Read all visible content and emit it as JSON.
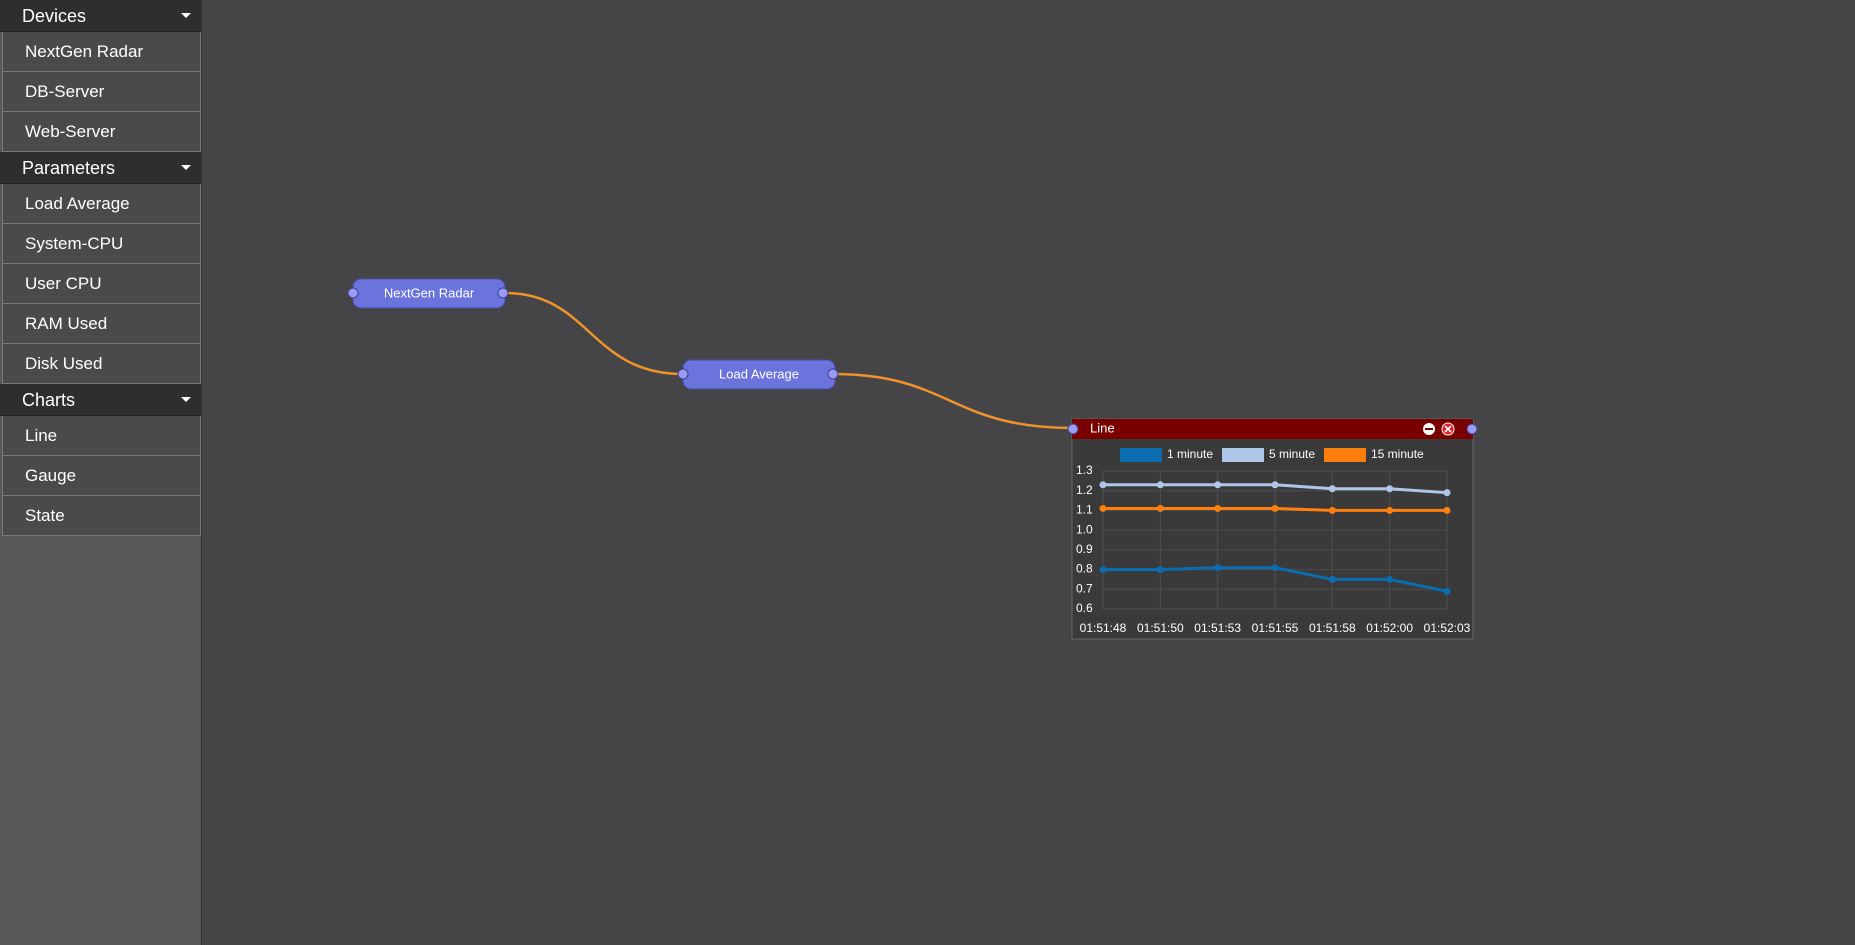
{
  "sidebar": {
    "sections": [
      {
        "title": "Devices",
        "items": [
          "NextGen Radar",
          "DB-Server",
          "Web-Server"
        ]
      },
      {
        "title": "Parameters",
        "items": [
          "Load Average",
          "System-CPU",
          "User CPU",
          "RAM Used",
          "Disk Used"
        ]
      },
      {
        "title": "Charts",
        "items": [
          "Line",
          "Gauge",
          "State"
        ]
      }
    ]
  },
  "nodes": [
    {
      "label": "NextGen Radar"
    },
    {
      "label": "Load Average"
    }
  ],
  "chart_data": {
    "type": "line",
    "title": "Line",
    "categories": [
      "01:51:48",
      "01:51:50",
      "01:51:53",
      "01:51:55",
      "01:51:58",
      "01:52:00",
      "01:52:03"
    ],
    "series": [
      {
        "name": "1 minute",
        "color": "#0a6db0",
        "values": [
          0.8,
          0.8,
          0.81,
          0.81,
          0.75,
          0.75,
          0.69
        ]
      },
      {
        "name": "5 minute",
        "color": "#aec7e8",
        "values": [
          1.23,
          1.23,
          1.23,
          1.23,
          1.21,
          1.21,
          1.19
        ]
      },
      {
        "name": "15 minute",
        "color": "#ff7f0e",
        "values": [
          1.11,
          1.11,
          1.11,
          1.11,
          1.1,
          1.1,
          1.1
        ]
      }
    ],
    "ylim": [
      0.6,
      1.3
    ],
    "yticks": [
      0.6,
      0.7,
      0.8,
      0.9,
      {
        "value": 1,
        "label": "1.0"
      },
      1.1,
      1.2,
      1.3
    ],
    "grid": true
  }
}
